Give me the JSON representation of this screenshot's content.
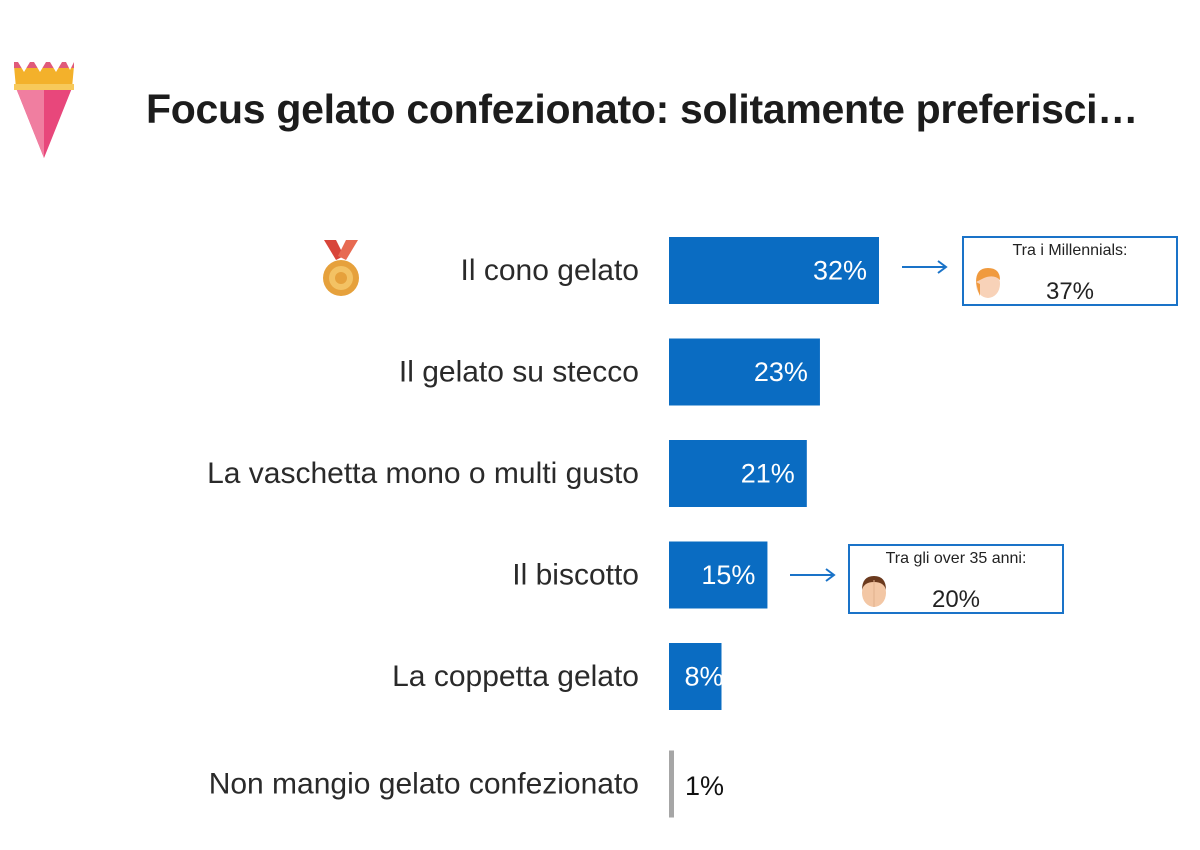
{
  "page": {
    "title": "Focus gelato confezionato: solitamente preferisci…"
  },
  "icons": {
    "cone": "ice-cream-cone-icon",
    "medal": "bronze-medal-icon",
    "arrow": "arrow-right-icon",
    "face_young": "millennial-face-icon",
    "face_adult": "adult-face-icon"
  },
  "chart_data": {
    "type": "bar",
    "orientation": "horizontal",
    "categories": [
      "Il cono gelato",
      "Il gelato su stecco",
      "La vaschetta mono o multi gusto",
      "Il biscotto",
      "La coppetta gelato",
      "Non mangio gelato confezionato"
    ],
    "values": [
      32,
      23,
      21,
      15,
      8,
      1
    ],
    "value_labels": [
      "32%",
      "23%",
      "21%",
      "15%",
      "8%",
      "1%"
    ],
    "bar_colors": [
      "#0a6cc2",
      "#0a6cc2",
      "#0a6cc2",
      "#0a6cc2",
      "#0a6cc2",
      "#a6a6a6"
    ],
    "grid": false,
    "legend": "none",
    "xlim": [
      0,
      32
    ]
  },
  "callouts": [
    {
      "category": "Il cono gelato",
      "heading": "Tra i Millennials:",
      "value": "37%"
    },
    {
      "category": "Il biscotto",
      "heading": "Tra gli over 35 anni:",
      "value": "20%"
    }
  ],
  "colors": {
    "bar": "#0a6cc2",
    "bar_minor": "#a6a6a6",
    "callout_border": "#1a73c8",
    "value_text_inside": "#ffffff",
    "value_text_outside": "#111111"
  }
}
